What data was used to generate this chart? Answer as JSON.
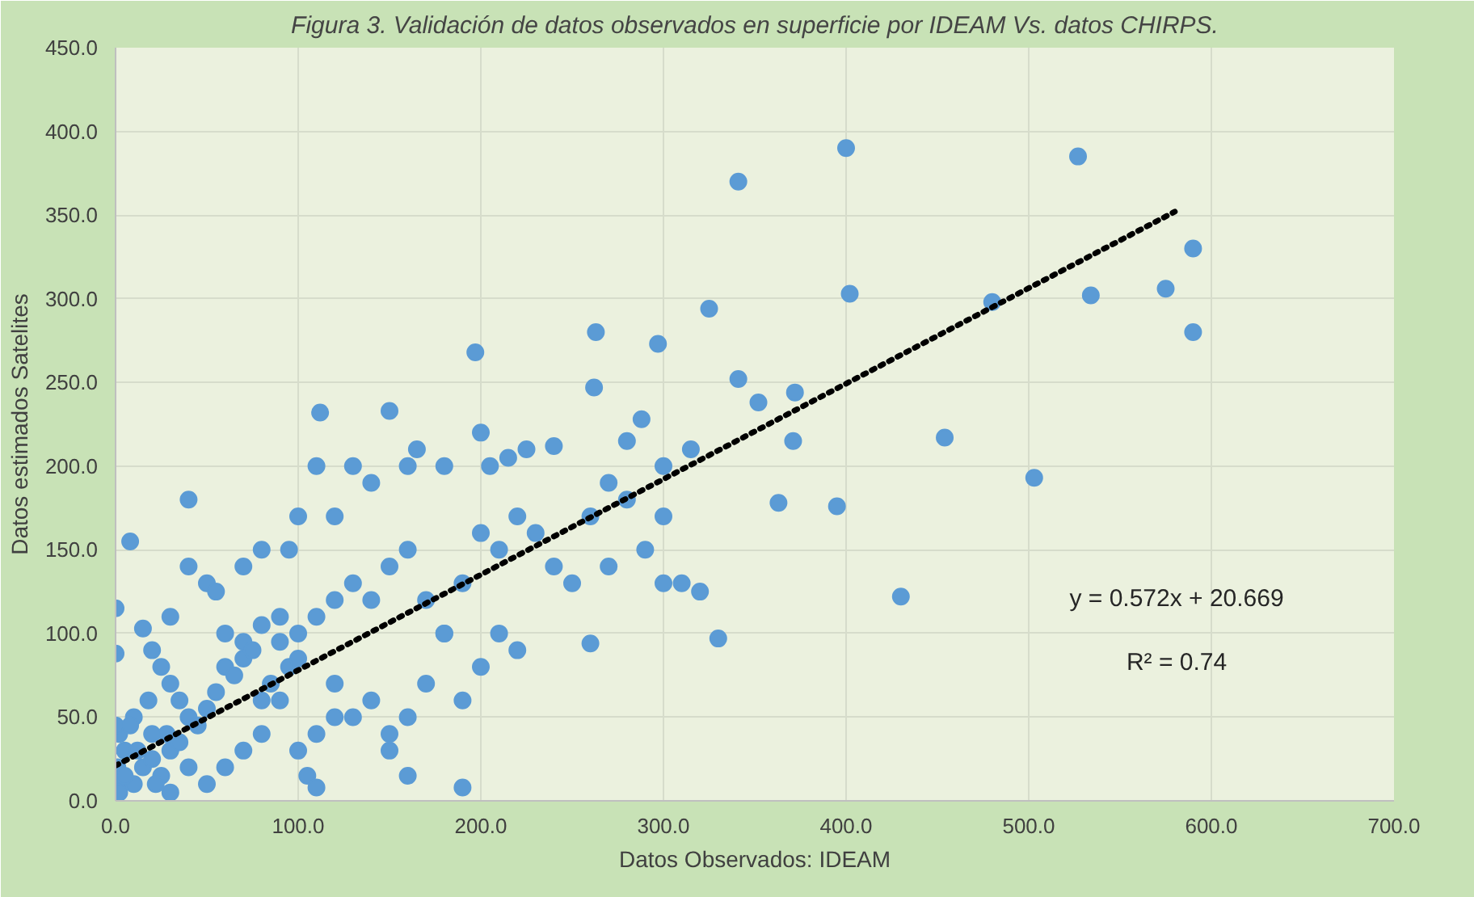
{
  "chart_data": {
    "type": "scatter",
    "title": "Figura 3. Validación de datos observados en superficie por IDEAM Vs. datos CHIRPS.",
    "xlabel": "Datos Observados: IDEAM",
    "ylabel": "Datos estimados Satelites",
    "xlim": [
      0,
      700
    ],
    "xticks": [
      {
        "value": 0,
        "label": "0.0"
      },
      {
        "value": 100,
        "label": "100.0"
      },
      {
        "value": 200,
        "label": "200.0"
      },
      {
        "value": 300,
        "label": "300.0"
      },
      {
        "value": 400,
        "label": "400.0"
      },
      {
        "value": 500,
        "label": "500.0"
      },
      {
        "value": 600,
        "label": "600.0"
      },
      {
        "value": 700,
        "label": "700.0"
      }
    ],
    "ylim": [
      0,
      450
    ],
    "yticks": [
      {
        "value": 0,
        "label": "0.0"
      },
      {
        "value": 50,
        "label": "50.0"
      },
      {
        "value": 100,
        "label": "100.0"
      },
      {
        "value": 150,
        "label": "150.0"
      },
      {
        "value": 200,
        "label": "200.0"
      },
      {
        "value": 250,
        "label": "250.0"
      },
      {
        "value": 300,
        "label": "300.0"
      },
      {
        "value": 350,
        "label": "350.0"
      },
      {
        "value": 400,
        "label": "400.0"
      },
      {
        "value": 450,
        "label": "450.0"
      }
    ],
    "grid": true,
    "annotations": [
      "y = 0.572x + 20.669",
      "R² = 0.74"
    ],
    "series": [
      {
        "color": "#5b9bd5",
        "marker": "circle",
        "x": [
          400,
          527,
          341,
          590,
          575,
          534,
          402,
          480,
          590,
          263,
          297,
          197,
          325,
          341,
          352,
          372,
          454,
          371,
          262,
          395,
          363,
          503,
          430,
          330,
          260,
          300,
          288,
          280,
          315,
          270,
          300,
          290,
          270,
          310,
          320,
          240,
          225,
          215,
          200,
          205,
          180,
          160,
          165,
          150,
          112,
          110,
          130,
          140,
          120,
          100,
          95,
          80,
          70,
          50,
          40,
          40,
          55,
          30,
          60,
          70,
          80,
          90,
          100,
          110,
          120,
          130,
          140,
          150,
          160,
          170,
          180,
          190,
          200,
          210,
          220,
          230,
          240,
          250,
          260,
          280,
          300,
          210,
          220,
          200,
          190,
          180,
          170,
          160,
          150,
          140,
          130,
          120,
          110,
          100,
          105,
          110,
          160,
          150,
          190,
          120,
          90,
          80,
          70,
          60,
          50,
          40,
          30,
          20,
          10,
          5,
          3,
          2,
          1,
          2,
          0,
          0,
          8,
          15,
          20,
          25,
          30,
          35,
          40,
          45,
          50,
          55,
          60,
          65,
          70,
          75,
          80,
          85,
          90,
          95,
          100,
          10,
          15,
          20,
          25,
          30,
          35,
          12,
          8,
          18,
          22,
          28,
          5,
          0
        ],
        "values": [
          390,
          385,
          370,
          330,
          306,
          302,
          303,
          298,
          280,
          280,
          273,
          268,
          294,
          252,
          238,
          244,
          217,
          215,
          247,
          176,
          178,
          193,
          122,
          97,
          94,
          200,
          228,
          215,
          210,
          190,
          170,
          150,
          140,
          130,
          125,
          212,
          210,
          205,
          220,
          200,
          200,
          200,
          210,
          233,
          232,
          200,
          200,
          190,
          170,
          170,
          150,
          150,
          140,
          130,
          140,
          180,
          125,
          110,
          100,
          95,
          105,
          110,
          100,
          110,
          120,
          130,
          120,
          140,
          150,
          120,
          100,
          130,
          160,
          150,
          170,
          160,
          140,
          130,
          170,
          180,
          130,
          100,
          90,
          80,
          60,
          100,
          70,
          50,
          40,
          60,
          50,
          70,
          40,
          30,
          15,
          8,
          15,
          30,
          8,
          50,
          60,
          40,
          30,
          20,
          10,
          20,
          30,
          40,
          50,
          30,
          10,
          5,
          20,
          40,
          88,
          115,
          155,
          103,
          90,
          80,
          70,
          60,
          50,
          45,
          55,
          65,
          80,
          75,
          85,
          90,
          60,
          70,
          95,
          80,
          85,
          10,
          20,
          25,
          15,
          5,
          35,
          30,
          45,
          60,
          10,
          40,
          15,
          45
        ]
      },
      {
        "type": "line",
        "color": "#000000",
        "line_style": "dotted",
        "x": [
          0,
          580
        ],
        "values": [
          21,
          352
        ]
      }
    ]
  }
}
